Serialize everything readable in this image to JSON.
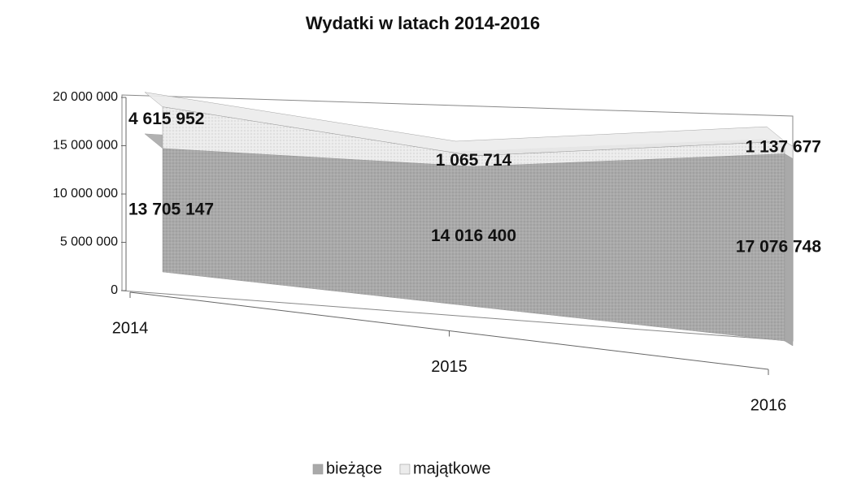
{
  "chart_data": {
    "type": "area3d",
    "stacked": true,
    "title": "Wydatki w latach 2014-2016",
    "categories": [
      "2014",
      "2015",
      "2016"
    ],
    "series": [
      {
        "name": "bieżące",
        "color": "#a9a9a9",
        "values": [
          13705147,
          14016400,
          17076748
        ],
        "value_labels": [
          "13 705 147",
          "14 016 400",
          "17 076 748"
        ]
      },
      {
        "name": "majątkowe",
        "color": "#ececec",
        "values": [
          4615952,
          1065714,
          1137677
        ],
        "value_labels": [
          "4 615 952",
          "1 065 714",
          "1 137 677"
        ]
      }
    ],
    "ylim": [
      0,
      20000000
    ],
    "yticks": [
      0,
      {
        "value": 5000000,
        "label": "5 000 000"
      },
      {
        "value": 10000000,
        "label": "10 000 000"
      },
      {
        "value": 15000000,
        "label": "15 000 000"
      },
      {
        "value": 20000000,
        "label": "20 000 000"
      }
    ],
    "legend": "bottom"
  }
}
